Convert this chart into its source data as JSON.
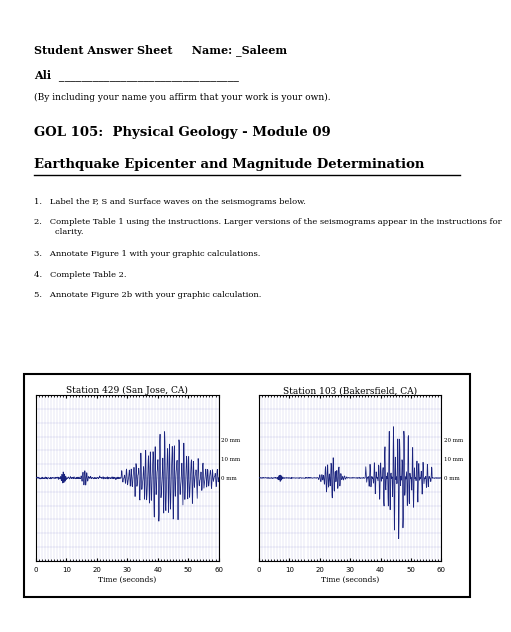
{
  "title_line1": "Student Answer Sheet     Name: _Saleem",
  "title_line2": "Ali",
  "underline_chars": "________________________________",
  "affirmation": "(By including your name you affirm that your work is your own).",
  "course_title": "GOL 105:  Physical Geology - Module 09",
  "lab_title": "Earthquake Epicenter and Magnitude Determination",
  "instructions": [
    "1.   Label the P, S and Surface waves on the seismograms below.",
    "2.   Complete Table 1 using the instructions. Larger versions of the seismograms appear in the instructions for\n        clarity.",
    "3.   Annotate Figure 1 with your graphic calculations.",
    "4.   Complete Table 2.",
    "5.   Annotate Figure 2b with your graphic calculation."
  ],
  "station1_title": "Station 429 (San Jose, CA)",
  "station2_title": "Station 103 (Bakersfield, CA)",
  "xlabel": "Time (seconds)",
  "mm_labels": [
    "20 mm",
    "10 mm",
    "0 mm"
  ],
  "seismo_color": "#1a237e",
  "grid_color": "#3333aa",
  "bg_color": "#ffffff"
}
